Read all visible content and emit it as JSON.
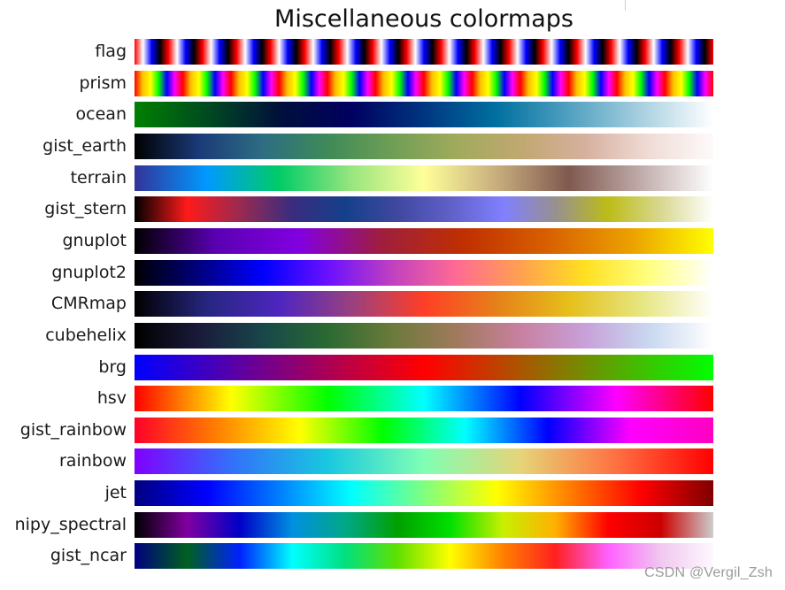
{
  "chart_data": {
    "type": "heatmap",
    "title": "Miscellaneous colormaps",
    "xlabel": "",
    "ylabel": "",
    "grid": false,
    "colormaps": [
      {
        "name": "flag",
        "repeats": 17,
        "stops": [
          "#ff0000",
          "#ffffff",
          "#0000ff",
          "#000000",
          "#ff0000"
        ]
      },
      {
        "name": "prism",
        "repeats": 12,
        "stops": [
          "#ff0000",
          "#ffc000",
          "#ffff00",
          "#00ff00",
          "#0000ff",
          "#ff00ff",
          "#ff0000"
        ]
      },
      {
        "name": "ocean",
        "stops": [
          "#008000",
          "#004a20",
          "#00103a",
          "#000060",
          "#003680",
          "#0070a0",
          "#50a0c0",
          "#a8d0e0",
          "#ffffff"
        ]
      },
      {
        "name": "gist_earth",
        "stops": [
          "#000000",
          "#1a3a78",
          "#2e6e82",
          "#3e8a58",
          "#6f9e55",
          "#a0aa5c",
          "#c0a870",
          "#d6b09e",
          "#f0dcd6",
          "#fdfafa"
        ]
      },
      {
        "name": "terrain",
        "stops": [
          "#333399",
          "#0099ff",
          "#00cc66",
          "#99e57f",
          "#ffff99",
          "#c8ae7e",
          "#80594f",
          "#c0acaa",
          "#ffffff"
        ]
      },
      {
        "name": "gist_stern",
        "stops": [
          "#000000",
          "#ff1a1a",
          "#9a2a50",
          "#3a2c80",
          "#14408a",
          "#4048a0",
          "#6060c8",
          "#8080ff",
          "#989090",
          "#bcbc18",
          "#d8d890",
          "#ffffff"
        ]
      },
      {
        "name": "gnuplot",
        "stops": [
          "#000000",
          "#5b00b4",
          "#8200e0",
          "#a01e3c",
          "#c03000",
          "#d86000",
          "#eca000",
          "#ffff00"
        ]
      },
      {
        "name": "gnuplot2",
        "stops": [
          "#000000",
          "#000080",
          "#0000ff",
          "#6a10ff",
          "#c040c0",
          "#ff6a94",
          "#ffa050",
          "#ffe020",
          "#ffff80",
          "#ffffff"
        ]
      },
      {
        "name": "CMRmap",
        "stops": [
          "#000000",
          "#262680",
          "#4d26bf",
          "#994080",
          "#ff3f26",
          "#e6801a",
          "#e6bf1a",
          "#e6e680",
          "#ffffff"
        ]
      },
      {
        "name": "cubehelix",
        "stops": [
          "#000000",
          "#1a1a3a",
          "#17474a",
          "#2a6a32",
          "#6b7a3a",
          "#a07a5c",
          "#c880a0",
          "#c8a0d8",
          "#c8d8f0",
          "#ffffff"
        ]
      },
      {
        "name": "brg",
        "stops": [
          "#0000ff",
          "#800080",
          "#ff0000",
          "#808000",
          "#00ff00"
        ]
      },
      {
        "name": "hsv",
        "stops": [
          "#ff0000",
          "#ffff00",
          "#00ff00",
          "#00ffff",
          "#0000ff",
          "#ff00ff",
          "#ff0000"
        ]
      },
      {
        "name": "gist_rainbow",
        "stops": [
          "#ff0028",
          "#ff8000",
          "#ffff00",
          "#00ff00",
          "#00ffff",
          "#0000ff",
          "#ff00ff",
          "#ff00c0"
        ]
      },
      {
        "name": "rainbow",
        "stops": [
          "#8000ff",
          "#3370fa",
          "#18c8e0",
          "#80ffb4",
          "#e6d478",
          "#ff7040",
          "#ff0000"
        ]
      },
      {
        "name": "jet",
        "stops": [
          "#00007f",
          "#0000ff",
          "#007fff",
          "#00ffff",
          "#7fff7f",
          "#ffff00",
          "#ff7f00",
          "#ff0000",
          "#7f0000"
        ]
      },
      {
        "name": "nipy_spectral",
        "stops": [
          "#000000",
          "#8000a0",
          "#0000c8",
          "#0090e0",
          "#00a888",
          "#00a000",
          "#00e000",
          "#c8f000",
          "#ffb000",
          "#ff0000",
          "#cc0000",
          "#cccccc"
        ]
      },
      {
        "name": "gist_ncar",
        "stops": [
          "#000080",
          "#006020",
          "#0020ff",
          "#00ffff",
          "#00e080",
          "#60e000",
          "#ffff00",
          "#ff8000",
          "#ff2020",
          "#ff60ff",
          "#f0c8f0",
          "#fef8fe"
        ]
      }
    ]
  },
  "watermark": "CSDN @Vergil_Zsh"
}
